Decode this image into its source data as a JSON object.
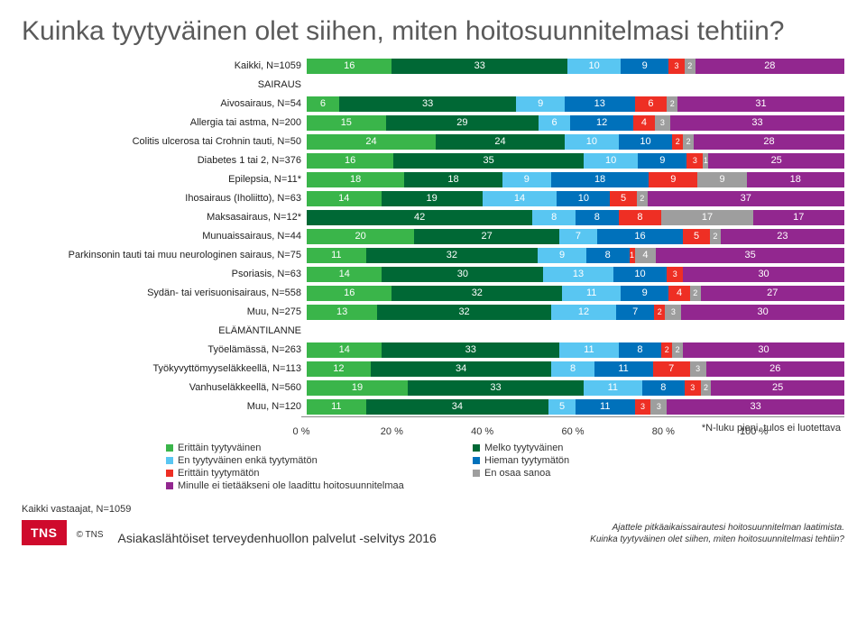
{
  "title": "Kuinka tyytyväinen olet siihen, miten hoitosuunnitelmasi tehtiin?",
  "axis": {
    "min": 0,
    "max": 100,
    "ticks": [
      "0 %",
      "20 %",
      "40 %",
      "60 %",
      "80 %",
      "100 %"
    ]
  },
  "categories": [
    {
      "name": "Erittäin tyytyväinen",
      "color": "#3ab54a"
    },
    {
      "name": "Melko tyytyväinen",
      "color": "#006835"
    },
    {
      "name": "En tyytyväinen enkä tyytymätön",
      "color": "#59c6f2"
    },
    {
      "name": "Hieman tyytymätön",
      "color": "#0071bb"
    },
    {
      "name": "Erittäin tyytymätön",
      "color": "#ee2f24"
    },
    {
      "name": "En osaa sanoa",
      "color": "#9e9e9e"
    },
    {
      "name": "Minulle ei tietääkseni ole laadittu hoitosuunnitelmaa",
      "color": "#92278f"
    }
  ],
  "rows": [
    {
      "label": "Kaikki, N=1059",
      "values": [
        16,
        33,
        10,
        9,
        3,
        2,
        28
      ]
    },
    {
      "label": "SAIRAUS",
      "heading": true
    },
    {
      "label": "Aivosairaus, N=54",
      "values": [
        6,
        33,
        9,
        13,
        6,
        2,
        31
      ]
    },
    {
      "label": "Allergia tai astma, N=200",
      "values": [
        15,
        29,
        6,
        12,
        4,
        3,
        33
      ]
    },
    {
      "label": "Colitis ulcerosa tai Crohnin tauti, N=50",
      "values": [
        24,
        24,
        10,
        10,
        2,
        2,
        28
      ]
    },
    {
      "label": "Diabetes 1 tai 2, N=376",
      "values": [
        16,
        35,
        10,
        9,
        3,
        1,
        25
      ]
    },
    {
      "label": "Epilepsia, N=11*",
      "values": [
        18,
        18,
        9,
        18,
        9,
        9,
        18
      ]
    },
    {
      "label": "Ihosairaus (Iholiitto), N=63",
      "values": [
        14,
        19,
        14,
        10,
        5,
        2,
        37
      ]
    },
    {
      "label": "Maksasairaus, N=12*",
      "values": [
        0,
        42,
        8,
        8,
        8,
        17,
        17
      ]
    },
    {
      "label": "Munuaissairaus, N=44",
      "values": [
        20,
        27,
        7,
        16,
        5,
        2,
        23
      ]
    },
    {
      "label": "Parkinsonin tauti tai muu neurologinen sairaus, N=75",
      "values": [
        11,
        32,
        9,
        8,
        1,
        4,
        35
      ]
    },
    {
      "label": "Psoriasis, N=63",
      "values": [
        14,
        30,
        13,
        10,
        3,
        0,
        30
      ]
    },
    {
      "label": "Sydän- tai verisuonisairaus, N=558",
      "values": [
        16,
        32,
        11,
        9,
        4,
        2,
        27
      ]
    },
    {
      "label": "Muu, N=275",
      "values": [
        13,
        32,
        12,
        7,
        2,
        3,
        30
      ]
    },
    {
      "label": "ELÄMÄNTILANNE",
      "heading": true
    },
    {
      "label": "Työelämässä, N=263",
      "values": [
        14,
        33,
        11,
        8,
        2,
        2,
        30
      ]
    },
    {
      "label": "Työkyvyttömyyseläkkeellä, N=113",
      "values": [
        12,
        34,
        8,
        11,
        7,
        3,
        26
      ]
    },
    {
      "label": "Vanhuseläkkeellä, N=560",
      "values": [
        19,
        33,
        11,
        8,
        3,
        2,
        25
      ]
    },
    {
      "label": "Muu, N=120",
      "values": [
        11,
        34,
        5,
        11,
        3,
        3,
        33
      ]
    }
  ],
  "value_fontsize": 11,
  "label_fontsize": 11,
  "note": "*N-luku pieni, tulos ei luotettava",
  "respondents": "Kaikki vastaajat, N=1059",
  "subtitle": "Asiakaslähtöiset terveydenhuollon palvelut -selvitys 2016",
  "logo": "TNS",
  "copyright": "© TNS",
  "footnote1": "Ajattele pitkäaikaissairautesi hoitosuunnitelman laatimista.",
  "footnote2": "Kuinka tyytyväinen olet siihen, miten hoitosuunnitelmasi tehtiin?"
}
